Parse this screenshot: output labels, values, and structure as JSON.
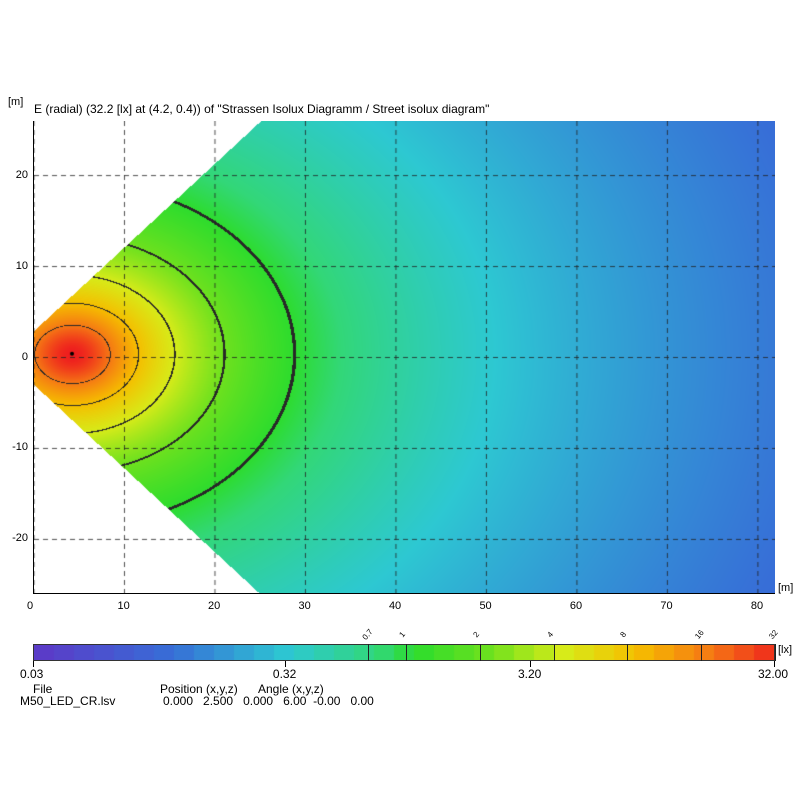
{
  "title": "E (radial) (32.2 [lx] at (4.2, 0.4)) of \"Strassen Isolux Diagramm / Street isolux diagram\"",
  "y_unit": "[m]",
  "x_unit": "[m]",
  "chart_data": {
    "type": "heatmap",
    "title": "E (radial) (32.2 [lx] at (4.2, 0.4)) of \"Strassen Isolux Diagramm / Street isolux diagram\"",
    "xlabel": "[m]",
    "ylabel": "[m]",
    "xlim": [
      0,
      82
    ],
    "ylim": [
      -26,
      26
    ],
    "x_ticks": [
      0,
      10,
      20,
      30,
      40,
      50,
      60,
      70,
      80
    ],
    "y_ticks": [
      20,
      10,
      0,
      -10,
      -20
    ],
    "x_tick_labels": [
      "0",
      "10",
      "20",
      "30",
      "40",
      "50",
      "60",
      "70",
      "80"
    ],
    "y_tick_labels": [
      "20",
      "10",
      "0",
      "-10",
      "-20"
    ],
    "grid": true,
    "max_value": 32.2,
    "max_position": [
      4.2,
      0.4
    ],
    "contour_levels": [
      1,
      2,
      4,
      8,
      16
    ],
    "colorbar": {
      "min": 0.03,
      "max": 32,
      "scale": "log",
      "unit": "[lx]",
      "labels": [
        "0.03",
        "0.32",
        "3.20",
        "32.00"
      ],
      "label_values": [
        0.03,
        0.32,
        3.2,
        32
      ],
      "marks": [
        "0.7",
        "1",
        "2",
        "4",
        "8",
        "16",
        "32"
      ],
      "mark_values": [
        0.7,
        1,
        2,
        4,
        8,
        16,
        32
      ]
    }
  },
  "footer": {
    "file_label": "File",
    "file_value": "M50_LED_CR.lsv",
    "position_label": "Position (x,y,z)",
    "angle_label": "Angle (x,y,z)",
    "values": "0.000   2.500   0.000   6.00  -0.00   0.00"
  }
}
